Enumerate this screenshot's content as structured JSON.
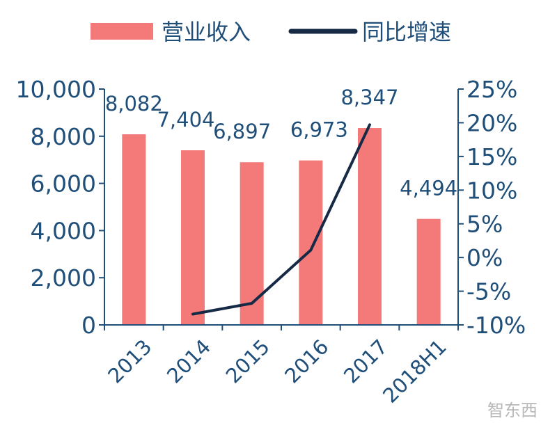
{
  "chart_data": {
    "type": "bar",
    "categories": [
      "2013",
      "2014",
      "2015",
      "2016",
      "2017",
      "2018H1"
    ],
    "series": [
      {
        "name": "营业收入",
        "type": "bar",
        "axis": "left",
        "color": "#f47a7a",
        "values": [
          8082,
          7404,
          6897,
          6973,
          8347,
          4494
        ],
        "labels": [
          "8,082",
          "7,404",
          "6,897",
          "6,973",
          "8,347",
          "4,494"
        ]
      },
      {
        "name": "同比增速",
        "type": "line",
        "axis": "right",
        "color": "#162a46",
        "values": [
          null,
          -8.4,
          -6.8,
          1.1,
          19.7,
          null
        ]
      }
    ],
    "y_left": {
      "range": [
        0,
        10000
      ],
      "ticks": [
        0,
        2000,
        4000,
        6000,
        8000,
        10000
      ],
      "tick_labels": [
        "0",
        "2,000",
        "4,000",
        "6,000",
        "8,000",
        "10,000"
      ]
    },
    "y_right": {
      "range": [
        -10,
        25
      ],
      "ticks": [
        -10,
        -5,
        0,
        5,
        10,
        15,
        20,
        25
      ],
      "tick_labels": [
        "-10%",
        "-5%",
        "0%",
        "5%",
        "10%",
        "15%",
        "20%",
        "25%"
      ]
    },
    "legend_position": "top",
    "grid": false,
    "axis_color": "#1f4e79"
  },
  "watermark": "智东西"
}
